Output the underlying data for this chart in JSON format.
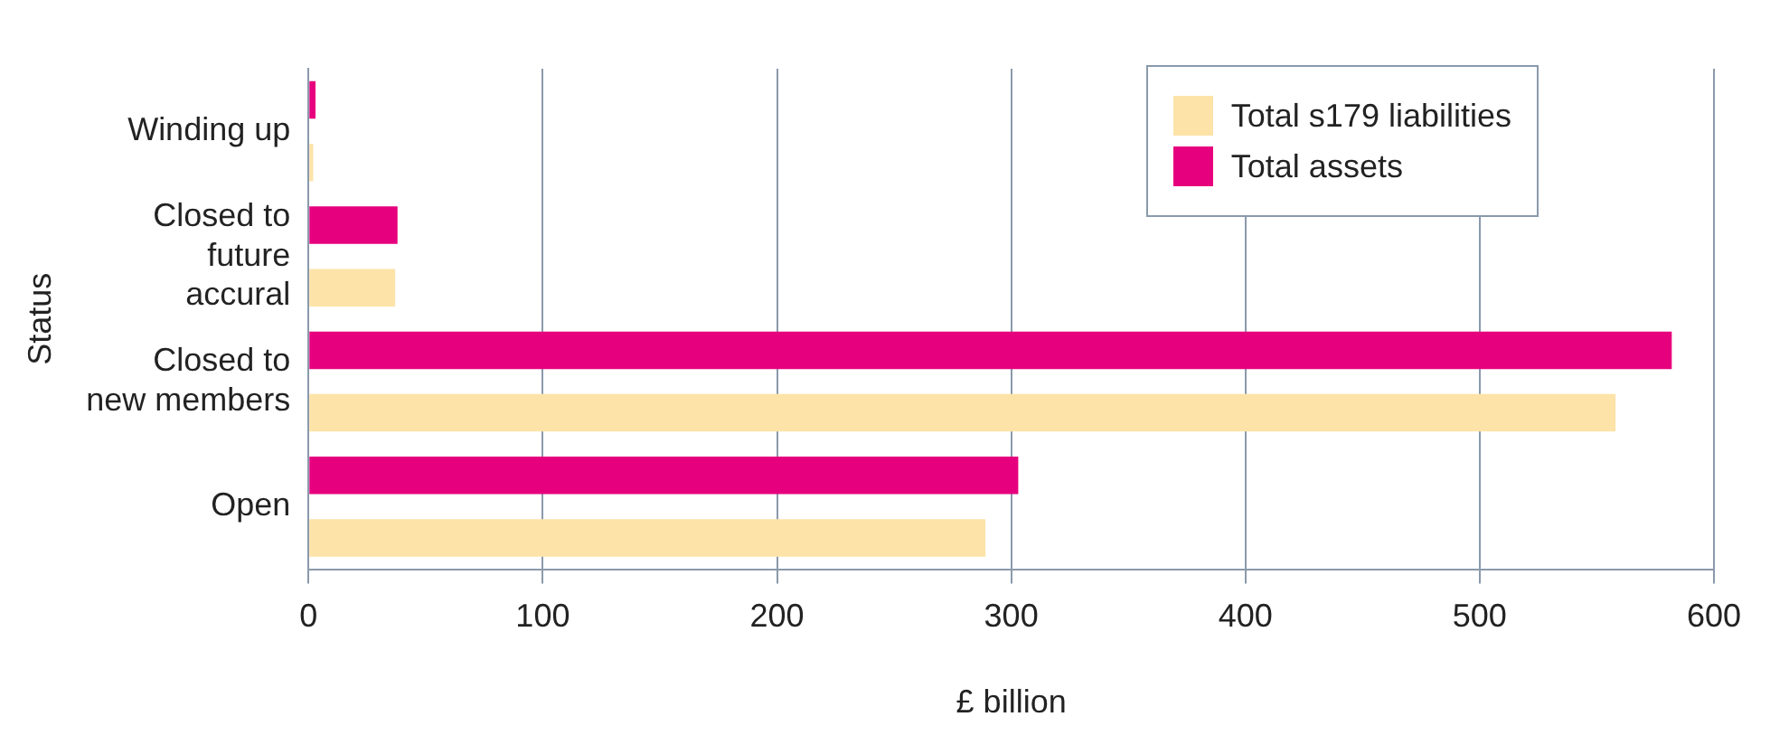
{
  "chart_data": {
    "type": "bar",
    "orientation": "horizontal",
    "xlabel": "£ billion",
    "ylabel": "Status",
    "categories": [
      "Winding up",
      "Closed to future accural",
      "Closed to new members",
      "Open"
    ],
    "series": [
      {
        "name": "Total s179 liabilities",
        "color": "#fde3a7",
        "values": [
          2,
          37,
          558,
          289
        ]
      },
      {
        "name": "Total assets",
        "color": "#e6007e",
        "values": [
          3,
          38,
          582,
          303
        ]
      }
    ],
    "xlim": [
      0,
      600
    ],
    "xticks": [
      0,
      100,
      200,
      300,
      400,
      500,
      600
    ],
    "grid": "x",
    "legend": "top right"
  }
}
